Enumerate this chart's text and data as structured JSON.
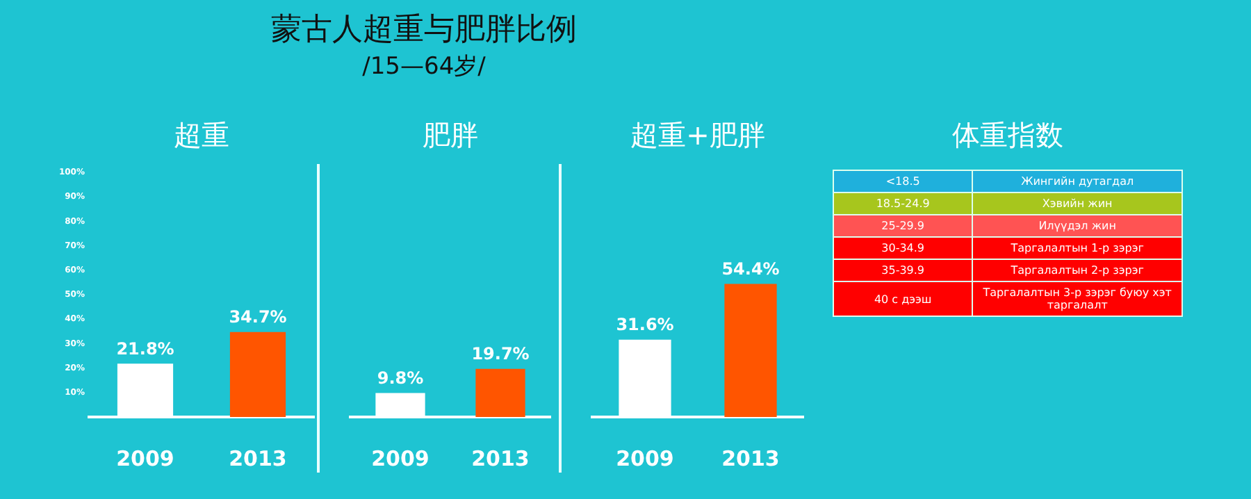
{
  "chart_data": [
    {
      "type": "other",
      "title": "蒙古人超重与肥胖比例",
      "subtitle": "/15—64岁/"
    },
    {
      "type": "bar",
      "title": "超重",
      "categories": [
        "2009",
        "2013"
      ],
      "values": [
        21.8,
        34.7
      ],
      "colors": [
        "#ffffff",
        "#ff5500"
      ],
      "value_labels": [
        "21.8%",
        "34.7%"
      ],
      "ylim": [
        0,
        100
      ],
      "yticks": [
        {
          "value": 10,
          "label": "10%"
        },
        {
          "value": 20,
          "label": "20%"
        },
        {
          "value": 30,
          "label": "30%"
        },
        {
          "value": 40,
          "label": "40%"
        },
        {
          "value": 50,
          "label": "50%"
        },
        {
          "value": 60,
          "label": "60%"
        },
        {
          "value": 70,
          "label": "70%"
        },
        {
          "value": 80,
          "label": "80%"
        },
        {
          "value": 90,
          "label": "90%"
        },
        {
          "value": 100,
          "label": "100%"
        }
      ],
      "grid": false,
      "legend": false
    },
    {
      "type": "bar",
      "title": "肥胖",
      "categories": [
        "2009",
        "2013"
      ],
      "values": [
        9.8,
        19.7
      ],
      "colors": [
        "#ffffff",
        "#ff5500"
      ],
      "value_labels": [
        "9.8%",
        "19.7%"
      ],
      "ylim": [
        0,
        100
      ],
      "tick_labels": "x",
      "grid": false,
      "legend": false
    },
    {
      "type": "bar",
      "title": "超重+肥胖",
      "categories": [
        "2009",
        "2013"
      ],
      "values": [
        31.6,
        54.4
      ],
      "colors": [
        "#ffffff",
        "#ff5500"
      ],
      "value_labels": [
        "31.6%",
        "54.4%"
      ],
      "ylim": [
        0,
        100
      ],
      "tick_labels": "x",
      "grid": false,
      "legend": false
    },
    {
      "type": "other",
      "title": "体重指数",
      "annotations": [
        "<18.5",
        "Жингийн дутагдал",
        "18.5-24.9",
        "Хэвийн жин",
        "25-29.9",
        "Илүүдэл жин",
        "30-34.9",
        "Таргалалтын 1-р зэрэг",
        "35-39.9",
        "Таргалалтын 2-р зэрэг",
        "40 с дээш",
        "Таргалалтын 3-р зэрэг буюу хэт таргалалт"
      ]
    }
  ]
}
